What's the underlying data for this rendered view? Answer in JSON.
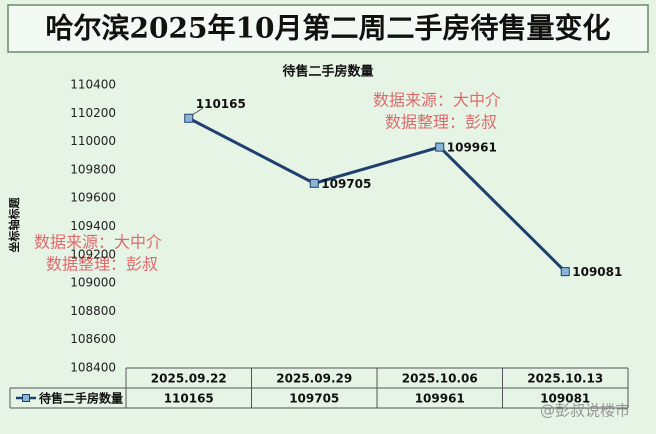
{
  "chart_data": {
    "type": "line",
    "title": "哈尔滨2025年10月第二周二手房待售量变化",
    "subtitle": "待售二手房数量",
    "y_label": "坐标轴标题",
    "categories": [
      "2025.09.22",
      "2025.09.29",
      "2025.10.06",
      "2025.10.13"
    ],
    "series": [
      {
        "name": "待售二手房数量",
        "color": "#1f3f6e",
        "marker_color": "#8ab4d8",
        "values": [
          110165,
          109705,
          109961,
          109081
        ]
      }
    ],
    "ylim": [
      108400,
      110400
    ],
    "yticks": [
      108400,
      108600,
      108800,
      109000,
      109200,
      109400,
      109600,
      109800,
      110000,
      110200,
      110400
    ],
    "grid": false,
    "data_table": true,
    "annotations": [
      "数据来源：大中介",
      "数据整理：彭叔"
    ],
    "watermark": "@彭叔说楼市"
  }
}
